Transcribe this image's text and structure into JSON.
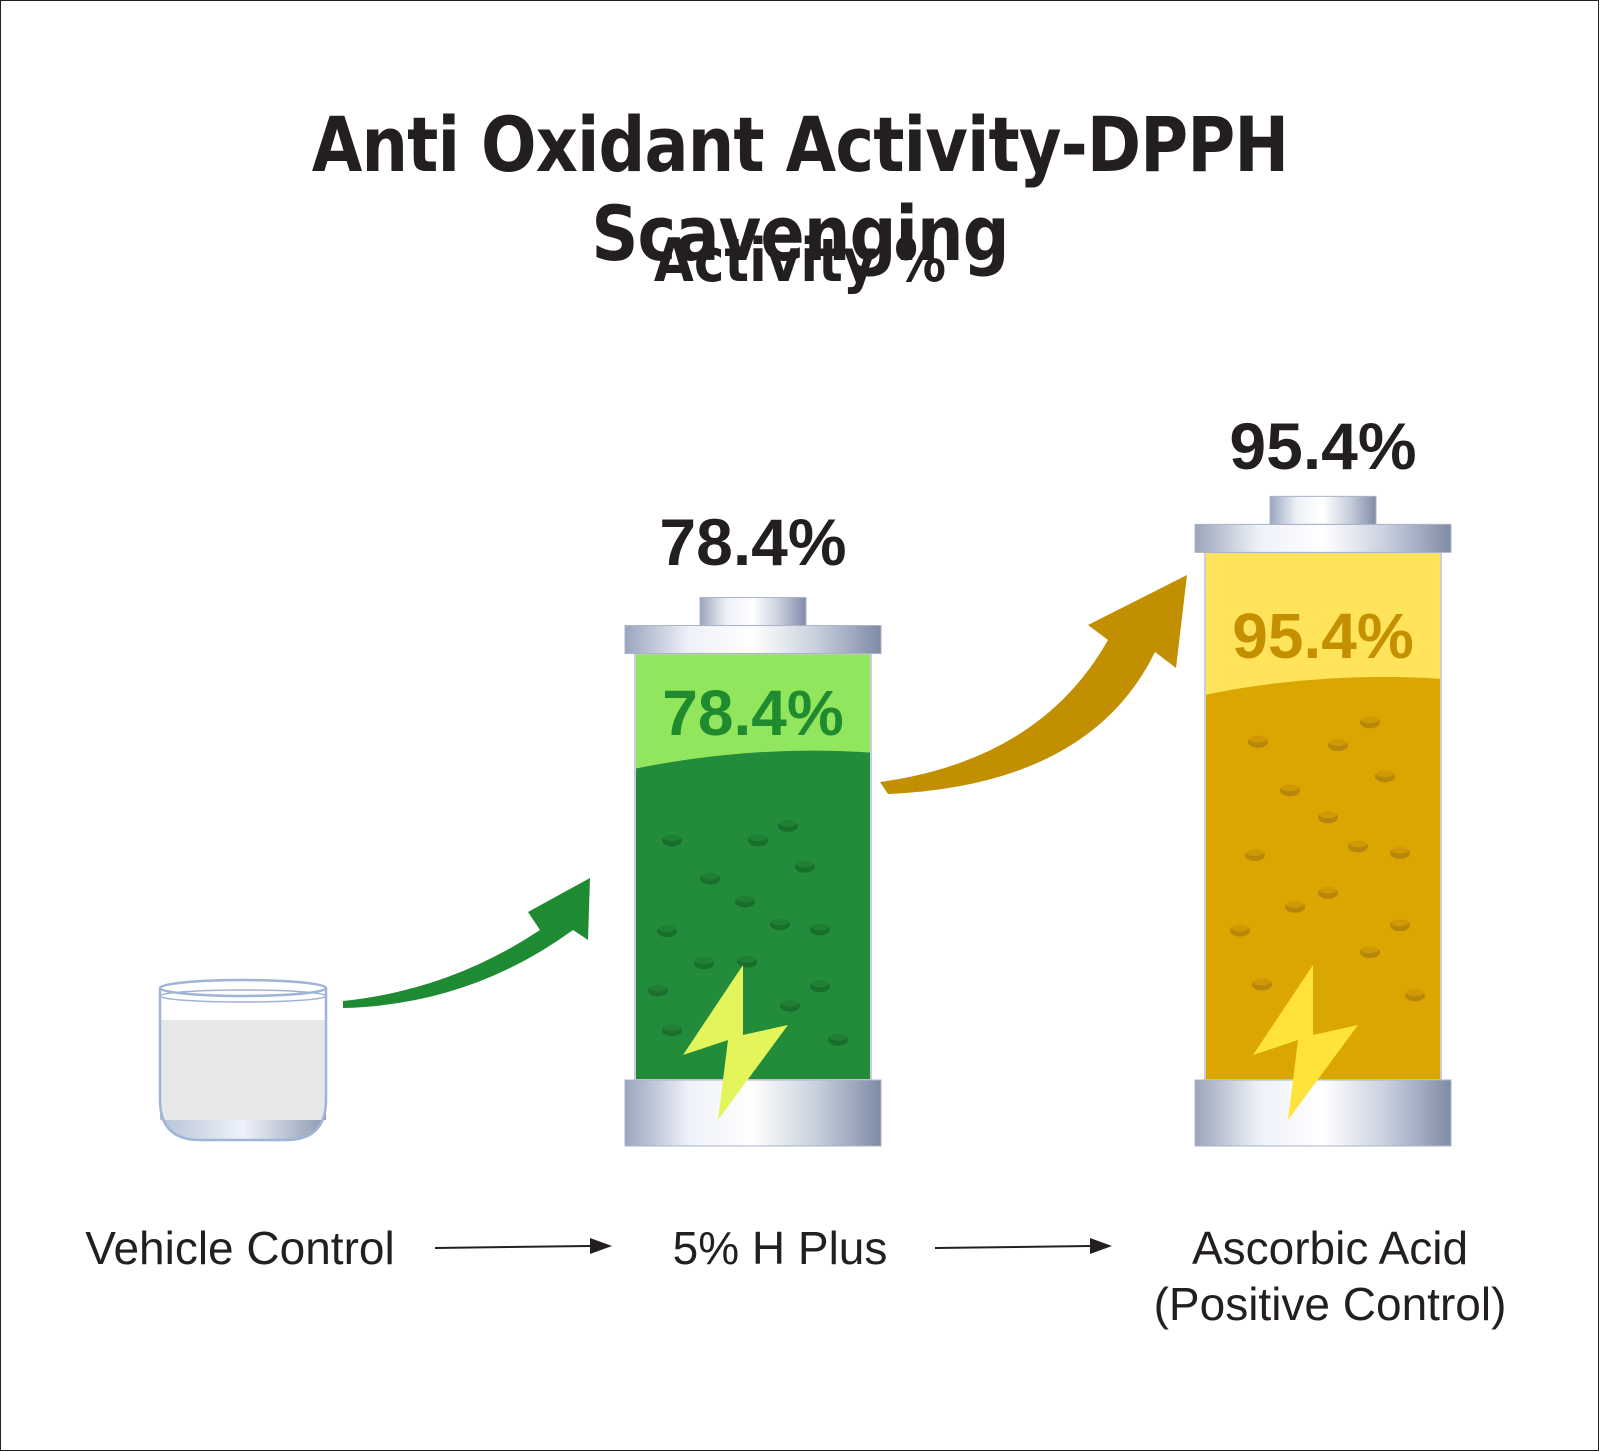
{
  "chart_data": {
    "type": "bar",
    "title": "Anti Oxidant Activity-DPPH Scavenging",
    "subtitle": "Activity %",
    "categories": [
      "Vehicle Control",
      "5% H Plus",
      [
        "Ascorbic Acid",
        "(Positive Control)"
      ]
    ],
    "values": [
      null,
      78.4,
      95.4
    ],
    "value_labels": [
      "",
      "78.4%",
      "95.4%"
    ],
    "colors": {
      "h_plus_fill": "#238c3a",
      "h_plus_light": "#92e65e",
      "h_plus_label": "#1f8a2e",
      "ascorbic_fill": "#dca600",
      "ascorbic_light": "#ffe35a",
      "ascorbic_label": "#c49000",
      "green_arrow": "#1e8a32",
      "gold_arrow": "#c18f00"
    }
  }
}
